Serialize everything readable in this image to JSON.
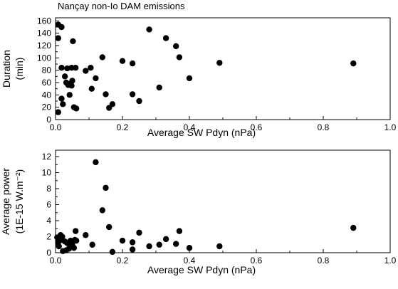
{
  "chart_data": [
    {
      "type": "scatter",
      "title": "Nançay non-Io DAM emissions",
      "xlabel": "Average SW Pdyn (nPa)",
      "ylabel": [
        "Duration",
        "(min)"
      ],
      "xlim": [
        0,
        1.0
      ],
      "ylim": [
        0,
        165
      ],
      "xticks": [
        "0.0",
        "0.2",
        "0.4",
        "0.6",
        "0.8",
        "1.0"
      ],
      "yticks": [
        "0",
        "20",
        "40",
        "60",
        "80",
        "100",
        "120",
        "140",
        "160"
      ],
      "grid": false,
      "colors": {
        "marker": "#000000",
        "axes": "#000000"
      },
      "points": [
        {
          "x": 0.008,
          "y": 154
        },
        {
          "x": 0.008,
          "y": 132
        },
        {
          "x": 0.008,
          "y": 12
        },
        {
          "x": 0.018,
          "y": 150
        },
        {
          "x": 0.018,
          "y": 84
        },
        {
          "x": 0.018,
          "y": 34
        },
        {
          "x": 0.022,
          "y": 25
        },
        {
          "x": 0.028,
          "y": 70
        },
        {
          "x": 0.032,
          "y": 60
        },
        {
          "x": 0.035,
          "y": 83
        },
        {
          "x": 0.038,
          "y": 56
        },
        {
          "x": 0.042,
          "y": 40
        },
        {
          "x": 0.045,
          "y": 58
        },
        {
          "x": 0.048,
          "y": 84
        },
        {
          "x": 0.048,
          "y": 55
        },
        {
          "x": 0.05,
          "y": 63
        },
        {
          "x": 0.052,
          "y": 127
        },
        {
          "x": 0.055,
          "y": 20
        },
        {
          "x": 0.06,
          "y": 84
        },
        {
          "x": 0.062,
          "y": 18
        },
        {
          "x": 0.09,
          "y": 79
        },
        {
          "x": 0.105,
          "y": 84
        },
        {
          "x": 0.108,
          "y": 50
        },
        {
          "x": 0.12,
          "y": 67
        },
        {
          "x": 0.14,
          "y": 101
        },
        {
          "x": 0.15,
          "y": 41
        },
        {
          "x": 0.16,
          "y": 19
        },
        {
          "x": 0.17,
          "y": 25
        },
        {
          "x": 0.2,
          "y": 95
        },
        {
          "x": 0.23,
          "y": 91
        },
        {
          "x": 0.23,
          "y": 41
        },
        {
          "x": 0.25,
          "y": 30
        },
        {
          "x": 0.28,
          "y": 146
        },
        {
          "x": 0.31,
          "y": 52
        },
        {
          "x": 0.33,
          "y": 132
        },
        {
          "x": 0.36,
          "y": 119
        },
        {
          "x": 0.37,
          "y": 101
        },
        {
          "x": 0.4,
          "y": 67
        },
        {
          "x": 0.49,
          "y": 92
        },
        {
          "x": 0.89,
          "y": 91
        }
      ]
    },
    {
      "type": "scatter",
      "xlabel": "Average SW Pdyn (nPa)",
      "ylabel": [
        "Average power",
        "(1E-15 W.m⁻²)"
      ],
      "xlim": [
        0,
        1.0
      ],
      "ylim": [
        0,
        12.8
      ],
      "xticks": [
        "0.0",
        "0.2",
        "0.4",
        "0.6",
        "0.8",
        "1.0"
      ],
      "yticks": [
        "0",
        "2",
        "4",
        "6",
        "8",
        "10",
        "12"
      ],
      "grid": false,
      "colors": {
        "marker": "#000000",
        "axes": "#000000"
      },
      "points": [
        {
          "x": 0.005,
          "y": 1.9
        },
        {
          "x": 0.008,
          "y": 1.3
        },
        {
          "x": 0.01,
          "y": 0.8
        },
        {
          "x": 0.015,
          "y": 2.2
        },
        {
          "x": 0.018,
          "y": 1.6
        },
        {
          "x": 0.02,
          "y": 2.0
        },
        {
          "x": 0.022,
          "y": 0.2
        },
        {
          "x": 0.028,
          "y": 1.4
        },
        {
          "x": 0.032,
          "y": 0.3
        },
        {
          "x": 0.035,
          "y": 1.2
        },
        {
          "x": 0.04,
          "y": 0.5
        },
        {
          "x": 0.045,
          "y": 1.5
        },
        {
          "x": 0.048,
          "y": 0.8
        },
        {
          "x": 0.05,
          "y": 1.0
        },
        {
          "x": 0.055,
          "y": 0.6
        },
        {
          "x": 0.058,
          "y": 1.6
        },
        {
          "x": 0.06,
          "y": 2.7
        },
        {
          "x": 0.062,
          "y": 1.5
        },
        {
          "x": 0.09,
          "y": 2.2
        },
        {
          "x": 0.11,
          "y": 1.0
        },
        {
          "x": 0.12,
          "y": 11.3
        },
        {
          "x": 0.14,
          "y": 5.3
        },
        {
          "x": 0.15,
          "y": 8.1
        },
        {
          "x": 0.16,
          "y": 3.2
        },
        {
          "x": 0.17,
          "y": 0.1
        },
        {
          "x": 0.2,
          "y": 1.5
        },
        {
          "x": 0.23,
          "y": 1.3
        },
        {
          "x": 0.23,
          "y": 0.4
        },
        {
          "x": 0.25,
          "y": 2.5
        },
        {
          "x": 0.28,
          "y": 0.8
        },
        {
          "x": 0.31,
          "y": 1.0
        },
        {
          "x": 0.33,
          "y": 1.7
        },
        {
          "x": 0.36,
          "y": 1.1
        },
        {
          "x": 0.37,
          "y": 2.7
        },
        {
          "x": 0.4,
          "y": 0.6
        },
        {
          "x": 0.49,
          "y": 0.8
        },
        {
          "x": 0.89,
          "y": 3.1
        }
      ]
    }
  ]
}
